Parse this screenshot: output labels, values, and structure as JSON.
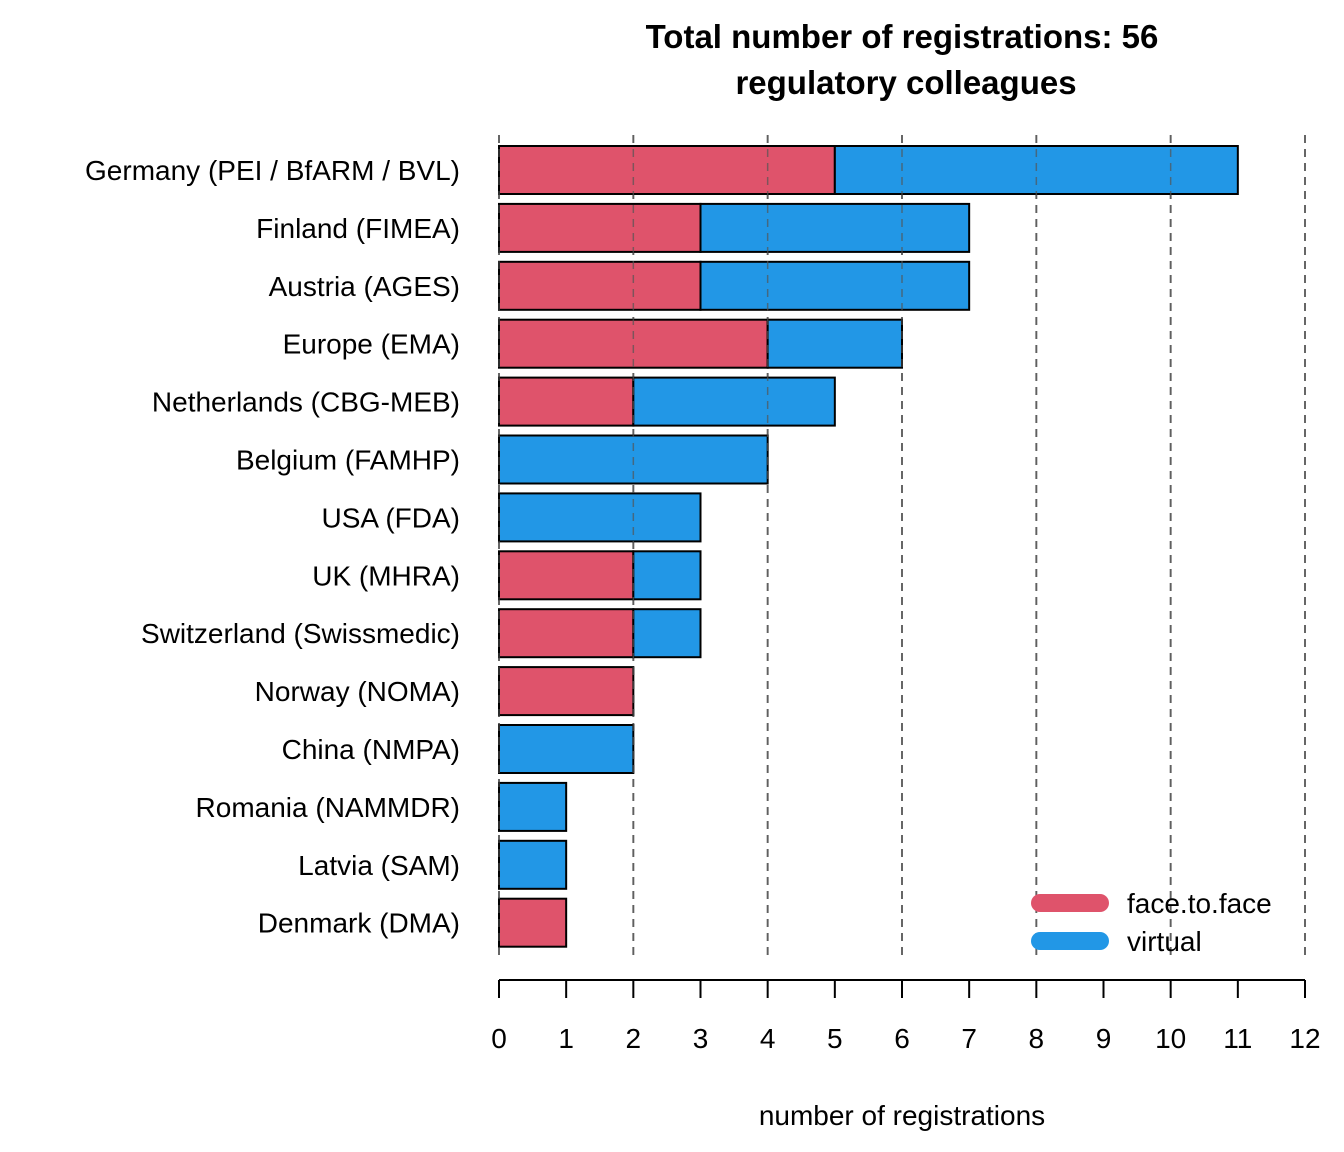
{
  "chart_data": {
    "type": "bar",
    "orientation": "horizontal",
    "stacked": true,
    "title_lines": [
      "Total number of registrations: 56",
      "regulatory colleagues"
    ],
    "xlabel": "number of registrations",
    "ylabel": "",
    "xlim": [
      0,
      12
    ],
    "xticks": [
      0,
      1,
      2,
      3,
      4,
      5,
      6,
      7,
      8,
      9,
      10,
      11,
      12
    ],
    "gridlines": [
      0,
      2,
      4,
      6,
      8,
      10,
      12
    ],
    "grid": "vertical dashed",
    "legend_position": "bottom-right",
    "categories": [
      "Germany (PEI / BfARM / BVL)",
      "Finland (FIMEA)",
      "Austria (AGES)",
      "Europe (EMA)",
      "Netherlands (CBG-MEB)",
      "Belgium (FAMHP)",
      "USA (FDA)",
      "UK (MHRA)",
      "Switzerland (Swissmedic)",
      "Norway (NOMA)",
      "China (NMPA)",
      "Romania (NAMMDR)",
      "Latvia (SAM)",
      "Denmark (DMA)"
    ],
    "series": [
      {
        "name": "face.to.face",
        "color": "#DF536B",
        "values": [
          5,
          3,
          3,
          4,
          2,
          0,
          0,
          2,
          2,
          2,
          0,
          0,
          0,
          1
        ]
      },
      {
        "name": "virtual",
        "color": "#2297E6",
        "values": [
          6,
          4,
          4,
          2,
          3,
          4,
          3,
          1,
          1,
          0,
          2,
          1,
          1,
          0
        ]
      }
    ]
  }
}
